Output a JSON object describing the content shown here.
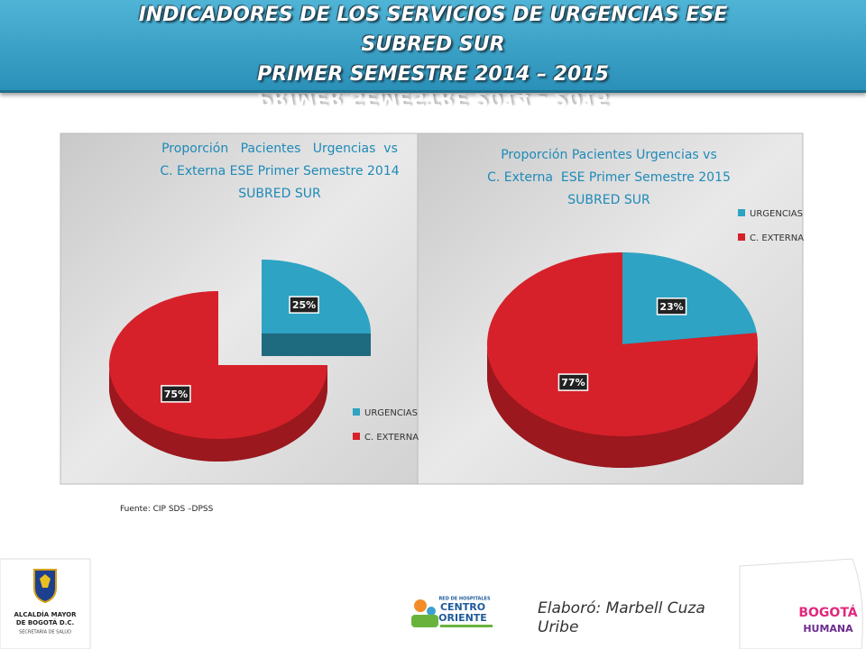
{
  "header": {
    "title_lines": [
      "INDICADORES DE LOS SERVICIOS DE URGENCIAS ESE",
      "SUBRED  SUR",
      "PRIMER SEMESTRE 2014 – 2015"
    ]
  },
  "chart_data": [
    {
      "type": "pie",
      "title_lines": [
        "Proporción   Pacientes   Urgencias  vs",
        "C. Externa ESE Primer Semestre 2014",
        "SUBRED SUR"
      ],
      "categories": [
        "URGENCIAS",
        "C. EXTERNA"
      ],
      "values": [
        25,
        75
      ],
      "value_labels": [
        "25%",
        "75%"
      ],
      "colors": [
        "#2ea3c3",
        "#d6212a"
      ],
      "legend": "bottom-right",
      "explode": true
    },
    {
      "type": "pie",
      "title_lines": [
        "Proporción Pacientes Urgencias vs",
        "C. Externa  ESE Primer Semestre 2015",
        "SUBRED SUR"
      ],
      "categories": [
        "URGENCIAS",
        "C. EXTERNA"
      ],
      "values": [
        23,
        77
      ],
      "value_labels": [
        "23%",
        "77%"
      ],
      "colors": [
        "#2ea3c3",
        "#d6212a"
      ],
      "legend": "top-right",
      "explode": false
    }
  ],
  "source": "Fuente: CIP SDS –DPSS",
  "author_lines": [
    "Elaboró: Marbell Cuza",
    "Uribe"
  ],
  "logos": {
    "alcaldia": [
      "ALCALDÍA MAYOR",
      "DE BOGOTÁ D.C.",
      "SECRETARÍA DE SALUD"
    ],
    "red": [
      "RED DE HOSPITALES",
      "CENTRO",
      "ORIENTE"
    ],
    "bogota": [
      "BOGOTÁ",
      "HUMANA"
    ]
  }
}
